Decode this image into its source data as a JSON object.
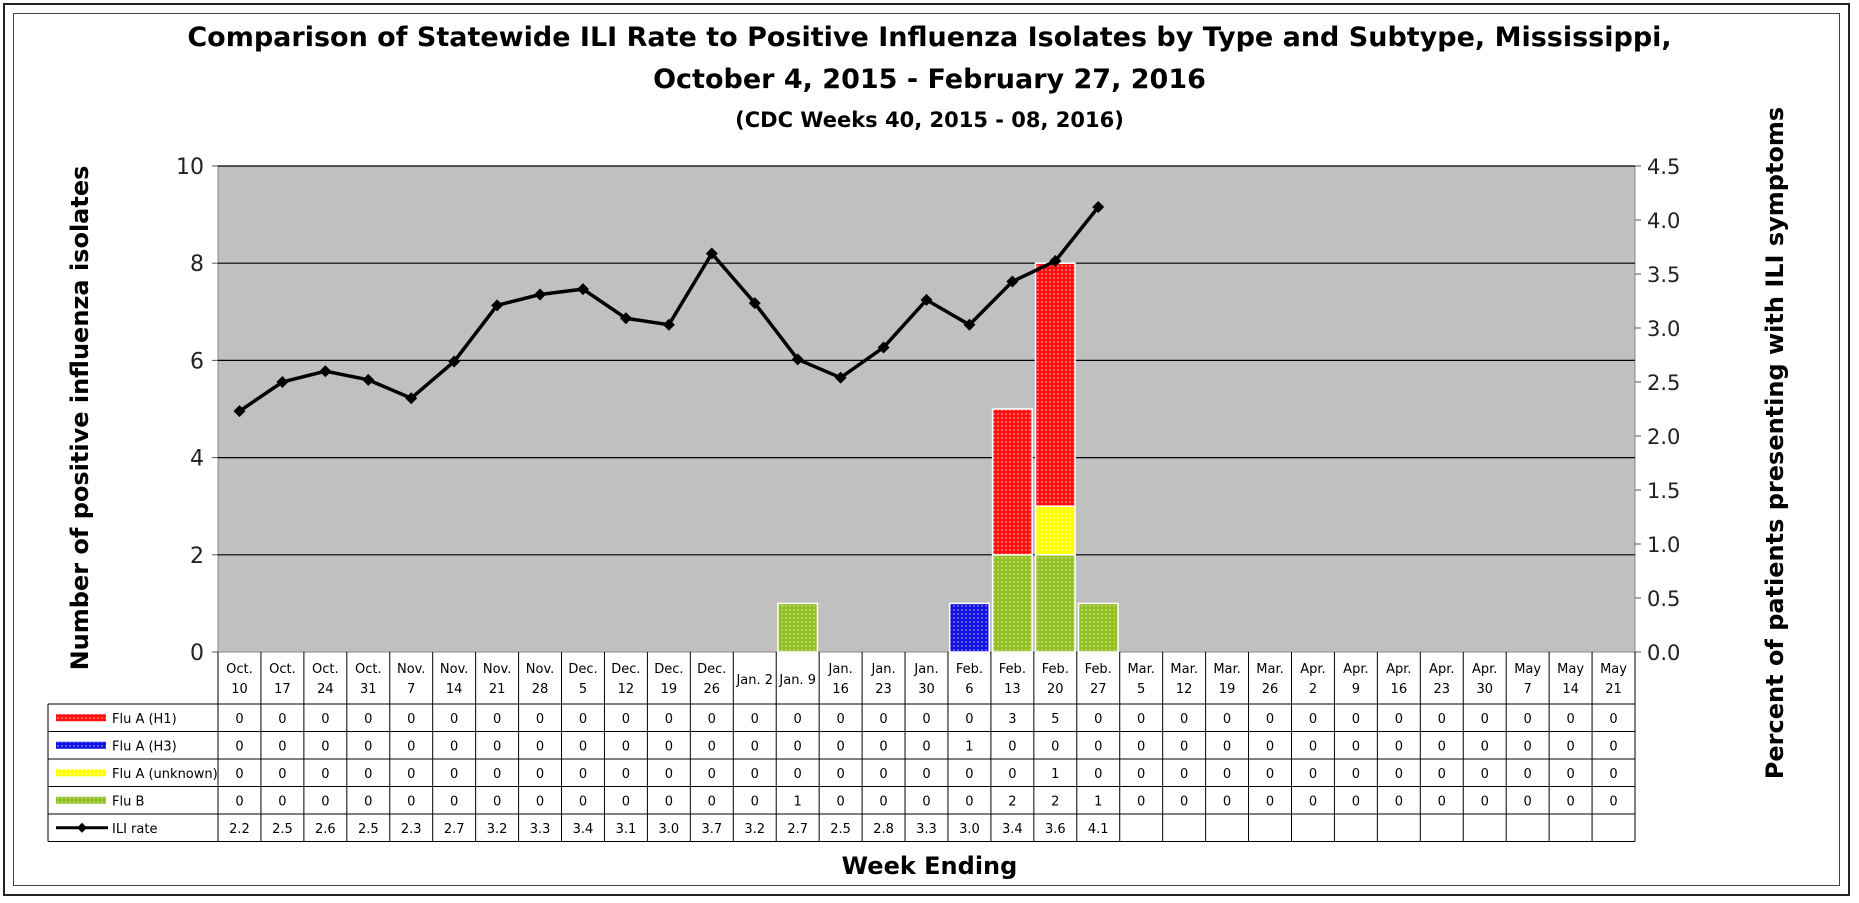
{
  "chart_data": {
    "type": "bar",
    "title": "Comparison of Statewide ILI Rate to Positive Influenza Isolates by Type and Subtype, Mississippi,",
    "title_line2": "October 4, 2015 - February 27, 2016",
    "subtitle": "(CDC Weeks 40, 2015 - 08, 2016)",
    "xlabel": "Week Ending",
    "ylabel": "Number of positive influenza isolates",
    "ylabel_right": "Percent of patients presenting with ILI symptoms",
    "ylim": [
      0,
      10
    ],
    "ylim_right": [
      0,
      4.5
    ],
    "yticks": [
      "0",
      "2",
      "4",
      "6",
      "8",
      "10"
    ],
    "yticks_right": [
      "0.0",
      "0.5",
      "1.0",
      "1.5",
      "2.0",
      "2.5",
      "3.0",
      "3.5",
      "4.0",
      "4.5"
    ],
    "grid": true,
    "stacked": true,
    "categories": [
      [
        "Oct.",
        "10"
      ],
      [
        "Oct.",
        "17"
      ],
      [
        "Oct.",
        "24"
      ],
      [
        "Oct.",
        "31"
      ],
      [
        "Nov.",
        "7"
      ],
      [
        "Nov.",
        "14"
      ],
      [
        "Nov.",
        "21"
      ],
      [
        "Nov.",
        "28"
      ],
      [
        "Dec.",
        "5"
      ],
      [
        "Dec.",
        "12"
      ],
      [
        "Dec.",
        "19"
      ],
      [
        "Dec.",
        "26"
      ],
      [
        "Jan. 2"
      ],
      [
        "Jan. 9"
      ],
      [
        "Jan.",
        "16"
      ],
      [
        "Jan.",
        "23"
      ],
      [
        "Jan.",
        "30"
      ],
      [
        "Feb.",
        "6"
      ],
      [
        "Feb.",
        "13"
      ],
      [
        "Feb.",
        "20"
      ],
      [
        "Feb.",
        "27"
      ],
      [
        "Mar.",
        "5"
      ],
      [
        "Mar.",
        "12"
      ],
      [
        "Mar.",
        "19"
      ],
      [
        "Mar.",
        "26"
      ],
      [
        "Apr.",
        "2"
      ],
      [
        "Apr.",
        "9"
      ],
      [
        "Apr.",
        "16"
      ],
      [
        "Apr.",
        "23"
      ],
      [
        "Apr.",
        "30"
      ],
      [
        "May",
        "7"
      ],
      [
        "May",
        "14"
      ],
      [
        "May",
        "21"
      ]
    ],
    "series": [
      {
        "name": "Flu B",
        "color": "#92c020",
        "values": [
          0,
          0,
          0,
          0,
          0,
          0,
          0,
          0,
          0,
          0,
          0,
          0,
          0,
          1,
          0,
          0,
          0,
          0,
          2,
          2,
          1,
          0,
          0,
          0,
          0,
          0,
          0,
          0,
          0,
          0,
          0,
          0,
          0
        ]
      },
      {
        "name": "Flu A (unknown)",
        "color": "#ffff00",
        "values": [
          0,
          0,
          0,
          0,
          0,
          0,
          0,
          0,
          0,
          0,
          0,
          0,
          0,
          0,
          0,
          0,
          0,
          0,
          0,
          1,
          0,
          0,
          0,
          0,
          0,
          0,
          0,
          0,
          0,
          0,
          0,
          0,
          0
        ]
      },
      {
        "name": "Flu A (H3)",
        "color": "#1010e0",
        "values": [
          0,
          0,
          0,
          0,
          0,
          0,
          0,
          0,
          0,
          0,
          0,
          0,
          0,
          0,
          0,
          0,
          0,
          1,
          0,
          0,
          0,
          0,
          0,
          0,
          0,
          0,
          0,
          0,
          0,
          0,
          0,
          0,
          0
        ]
      },
      {
        "name": "Flu A (H1)",
        "color": "#ff1010",
        "values": [
          0,
          0,
          0,
          0,
          0,
          0,
          0,
          0,
          0,
          0,
          0,
          0,
          0,
          0,
          0,
          0,
          0,
          0,
          3,
          5,
          0,
          0,
          0,
          0,
          0,
          0,
          0,
          0,
          0,
          0,
          0,
          0,
          0
        ]
      }
    ],
    "line_series": {
      "name": "ILI rate",
      "color": "#000000",
      "values": [
        2.2,
        2.5,
        2.6,
        2.5,
        2.3,
        2.7,
        3.2,
        3.3,
        3.4,
        3.1,
        3.0,
        3.7,
        3.2,
        2.7,
        2.5,
        2.8,
        3.3,
        3.0,
        3.4,
        3.6,
        4.1
      ],
      "plotted_values": [
        2.23,
        2.5,
        2.6,
        2.52,
        2.35,
        2.69,
        3.21,
        3.31,
        3.36,
        3.09,
        3.03,
        3.69,
        3.23,
        2.71,
        2.54,
        2.82,
        3.26,
        3.03,
        3.43,
        3.62,
        4.12
      ]
    },
    "table_rows": [
      {
        "label": "Flu A (H1)",
        "color": "#ff1010",
        "values": [
          "0",
          "0",
          "0",
          "0",
          "0",
          "0",
          "0",
          "0",
          "0",
          "0",
          "0",
          "0",
          "0",
          "0",
          "0",
          "0",
          "0",
          "0",
          "3",
          "5",
          "0",
          "0",
          "0",
          "0",
          "0",
          "0",
          "0",
          "0",
          "0",
          "0",
          "0",
          "0",
          "0"
        ]
      },
      {
        "label": "Flu A (H3)",
        "color": "#1010e0",
        "values": [
          "0",
          "0",
          "0",
          "0",
          "0",
          "0",
          "0",
          "0",
          "0",
          "0",
          "0",
          "0",
          "0",
          "0",
          "0",
          "0",
          "0",
          "1",
          "0",
          "0",
          "0",
          "0",
          "0",
          "0",
          "0",
          "0",
          "0",
          "0",
          "0",
          "0",
          "0",
          "0",
          "0"
        ]
      },
      {
        "label": "Flu A (unknown)",
        "color": "#ffff00",
        "values": [
          "0",
          "0",
          "0",
          "0",
          "0",
          "0",
          "0",
          "0",
          "0",
          "0",
          "0",
          "0",
          "0",
          "0",
          "0",
          "0",
          "0",
          "0",
          "0",
          "1",
          "0",
          "0",
          "0",
          "0",
          "0",
          "0",
          "0",
          "0",
          "0",
          "0",
          "0",
          "0",
          "0"
        ]
      },
      {
        "label": "Flu B",
        "color": "#92c020",
        "values": [
          "0",
          "0",
          "0",
          "0",
          "0",
          "0",
          "0",
          "0",
          "0",
          "0",
          "0",
          "0",
          "0",
          "1",
          "0",
          "0",
          "0",
          "0",
          "2",
          "2",
          "1",
          "0",
          "0",
          "0",
          "0",
          "0",
          "0",
          "0",
          "0",
          "0",
          "0",
          "0",
          "0"
        ]
      },
      {
        "label": "ILI rate",
        "color": "#000000",
        "line": true,
        "values": [
          "2.2",
          "2.5",
          "2.6",
          "2.5",
          "2.3",
          "2.7",
          "3.2",
          "3.3",
          "3.4",
          "3.1",
          "3.0",
          "3.7",
          "3.2",
          "2.7",
          "2.5",
          "2.8",
          "3.3",
          "3.0",
          "3.4",
          "3.6",
          "4.1",
          "",
          "",
          "",
          "",
          "",
          "",
          "",
          "",
          "",
          "",
          "",
          ""
        ]
      }
    ]
  }
}
